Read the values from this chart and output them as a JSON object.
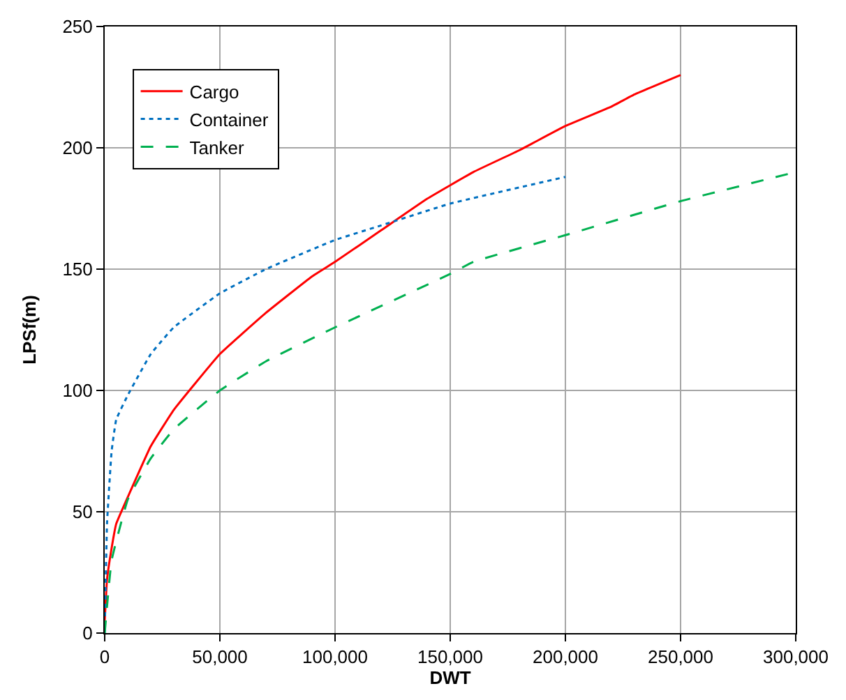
{
  "chart_data": {
    "type": "line",
    "xlabel": "DWT",
    "ylabel": "LPSf(m)",
    "xlim": [
      0,
      300000
    ],
    "xticks": [
      {
        "value": 0,
        "label": "0"
      },
      {
        "value": 50000,
        "label": "50,000"
      },
      {
        "value": 100000,
        "label": "100,000"
      },
      {
        "value": 150000,
        "label": "150,000"
      },
      {
        "value": 200000,
        "label": "200,000"
      },
      {
        "value": 250000,
        "label": "250,000"
      },
      {
        "value": 300000,
        "label": "300,000"
      }
    ],
    "ylim": [
      0,
      250
    ],
    "yticks": [
      0,
      50,
      100,
      150,
      200,
      250
    ],
    "grid": true,
    "legend": "top left",
    "series": [
      {
        "name": "Cargo",
        "color": "#ff0000",
        "line_style": "solid",
        "x": [
          0,
          1000,
          3000,
          5000,
          10000,
          20000,
          30000,
          50000,
          70000,
          90000,
          100000,
          120000,
          140000,
          160000,
          180000,
          200000,
          220000,
          230000,
          250000
        ],
        "values": [
          5,
          22,
          35,
          45,
          56,
          77,
          92,
          115,
          132,
          147,
          153,
          166,
          179,
          190,
          199,
          209,
          217,
          222,
          230
        ]
      },
      {
        "name": "Container",
        "color": "#0070c0",
        "line_style": "dotted",
        "x": [
          0,
          1000,
          3000,
          5000,
          10000,
          20000,
          30000,
          50000,
          70000,
          100000,
          120000,
          150000,
          200000
        ],
        "values": [
          0,
          45,
          75,
          88,
          98,
          115,
          126,
          140,
          150,
          162,
          168,
          177,
          188
        ]
      },
      {
        "name": "Tanker",
        "color": "#00b050",
        "line_style": "dashed",
        "x": [
          0,
          3000,
          10000,
          20000,
          30000,
          50000,
          70000,
          100000,
          150000,
          160000,
          200000,
          250000,
          300000
        ],
        "values": [
          0,
          30,
          55,
          72,
          84,
          100,
          112,
          126,
          148,
          153,
          164,
          178,
          190
        ]
      }
    ]
  }
}
